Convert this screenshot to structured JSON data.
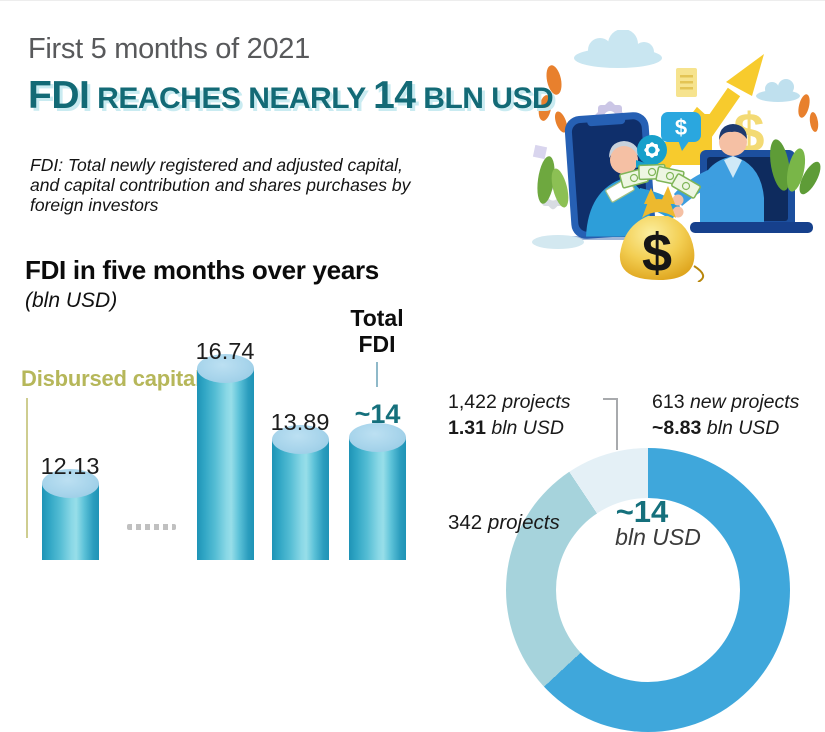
{
  "header": {
    "kicker": "First 5 months of 2021",
    "title_part1": "FDI",
    "title_part2": " REACHES NEARLY ",
    "title_part3": "14",
    "title_part4": " BLN USD",
    "description_line1": "FDI: Total newly registered and adjusted capital,",
    "description_line2": "and capital contribution and shares purchases by",
    "description_line3": "foreign investors",
    "accent_color": "#136A76",
    "accent_shadow_color": "#C9EBF1"
  },
  "bar_section": {
    "title": "FDI in five months over years",
    "unit": "(bln USD)",
    "legend_disbursed": "Disbursed capital",
    "total_line1": "Total",
    "total_line2": "FDI",
    "legend_color": "#B6B75A",
    "bar_top_color": "#A7D4EB",
    "bar_body_color": "#2B9DBE"
  },
  "donut_section": {
    "center_value": "~14",
    "center_unit": "bln USD",
    "label_contribution_v1": "1,422",
    "label_contribution_r1": " projects",
    "label_contribution_v2": "1.31",
    "label_contribution_r2": " bln USD",
    "label_new_v1": "613",
    "label_new_r1": " new projects",
    "label_new_v2": "~8.83",
    "label_new_r2": " bln USD",
    "label_adjusted_v1": "342",
    "label_adjusted_r1": " projects"
  },
  "icons": {
    "illustration": "two-businesspeople-shaking-hands-through-phone-and-laptop-over-money-bag-with-growth-arrow"
  },
  "chart_data": [
    {
      "type": "bar",
      "title": "FDI in five months over years",
      "ylabel": "bln USD",
      "categories": [
        "",
        "",
        "",
        ""
      ],
      "series": [
        {
          "name": "Total FDI in five months",
          "values": [
            12.13,
            16.74,
            13.89,
            14
          ]
        }
      ],
      "value_labels": [
        "12.13",
        "16.74",
        "13.89",
        "~14"
      ],
      "legend_entries": [
        "Disbursed capital"
      ],
      "annotations": [
        "Total FDI",
        "~14"
      ],
      "note": "bar bases and year tick labels are cropped at the bottom edge of the screenshot"
    },
    {
      "type": "pie",
      "subtype": "donut",
      "center_label": "~14",
      "center_unit": "bln USD",
      "total_bln_usd": 14,
      "slices": [
        {
          "label": "613 new projects",
          "display_value": "~8.83 bln USD",
          "value_bln_usd": 8.83,
          "color": "#3FA7DB",
          "estimated": false
        },
        {
          "label": "342 projects",
          "display_value": "",
          "value_bln_usd": 3.86,
          "color": "#A6D3DC",
          "estimated": true
        },
        {
          "label": "1,422 projects",
          "display_value": "1.31 bln USD",
          "value_bln_usd": 1.31,
          "color": "#E4F0F6",
          "estimated": false
        }
      ],
      "legend_position": "around",
      "note": "bottom half of donut cropped; 342-projects slice value estimated from remainder of ~14 total"
    }
  ]
}
